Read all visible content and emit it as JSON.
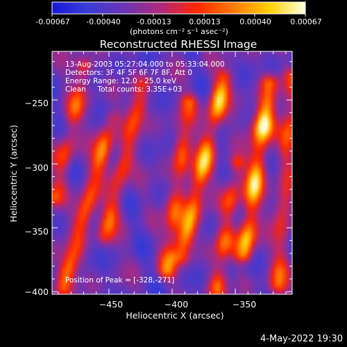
{
  "colors": {
    "colormap": [
      "#1a18d8",
      "#3b3bd5",
      "#6a35b5",
      "#b0297a",
      "#ff2600",
      "#ff7a00",
      "#ffd000",
      "#ffffe0"
    ],
    "background": "#000000",
    "foreground": "#ffffff"
  },
  "colorbar": {
    "tick_labels": [
      "-0.00067",
      "-0.00040",
      "-0.00013",
      "0.00013",
      "0.00040",
      "0.00067"
    ],
    "units_label": "(photons cm⁻² s⁻¹ asec⁻²)"
  },
  "chart_data": {
    "type": "heatmap",
    "title": "Reconstructed RHESSI Image",
    "xlabel": "Heliocentric X (arcsec)",
    "ylabel": "Heliocentric Y (arcsec)",
    "xlim": [
      -495,
      -305
    ],
    "ylim": [
      -402,
      -212
    ],
    "x_ticks": [
      -450,
      -400,
      -350
    ],
    "y_ticks": [
      -250,
      -300,
      -350,
      -400
    ],
    "x_tick_labels": [
      "−450",
      "−400",
      "−350"
    ],
    "y_tick_labels": [
      "−250",
      "−300",
      "−350",
      "−400"
    ],
    "value_range": [
      -0.00067,
      0.00067
    ],
    "annotations": [
      "13-Aug-2003 05:27:04.000 to 05:33:04.000",
      "Detectors: 3F 4F 5F 6F 7F 8F, Att 0",
      "Energy Range: 12.0 - 25.0 keV",
      "Clean     Total counts: 3.35E+03"
    ],
    "peak_label": "Position of Peak = [-328,-271]",
    "peak": {
      "x": -328,
      "y": -271
    },
    "bright_streaks": [
      {
        "x_top": -469,
        "y_top": -224,
        "x_bot": -493,
        "y_bot": -326,
        "strength": 0.55
      },
      {
        "x_top": -448,
        "y_top": -265,
        "x_bot": -486,
        "y_bot": -396,
        "strength": 0.75
      },
      {
        "x_top": -423,
        "y_top": -238,
        "x_bot": -453,
        "y_bot": -356,
        "strength": 0.62
      },
      {
        "x_top": -387,
        "y_top": -252,
        "x_bot": -404,
        "y_bot": -383,
        "strength": 0.62
      },
      {
        "x_top": -359,
        "y_top": -233,
        "x_bot": -393,
        "y_bot": -372,
        "strength": 0.95
      },
      {
        "x_top": -349,
        "y_top": -300,
        "x_bot": -365,
        "y_bot": -398,
        "strength": 0.6
      },
      {
        "x_top": -323,
        "y_top": -237,
        "x_bot": -343,
        "y_bot": -370,
        "strength": 1.0
      },
      {
        "x_top": -305,
        "y_top": -232,
        "x_bot": -316,
        "y_bot": -395,
        "strength": 0.55
      }
    ]
  },
  "footer": {
    "date": "4-May-2022 19:30"
  }
}
